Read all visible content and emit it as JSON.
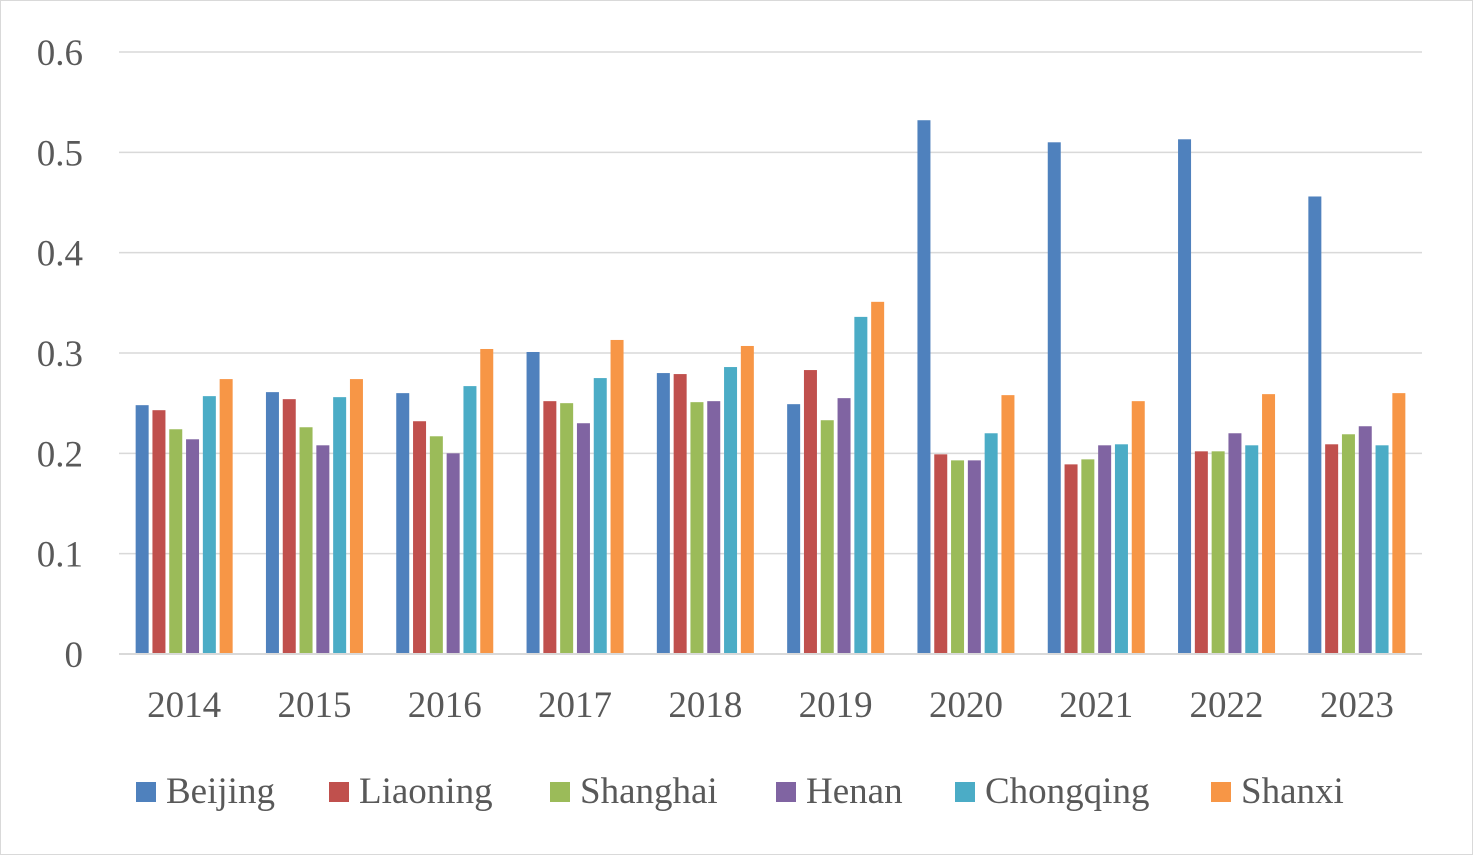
{
  "chart_data": {
    "type": "bar",
    "title": "",
    "xlabel": "",
    "ylabel": "",
    "ylim": [
      0,
      0.6
    ],
    "yticks": [
      "0",
      "0.1",
      "0.2",
      "0.3",
      "0.4",
      "0.5",
      "0.6"
    ],
    "grid": true,
    "legend_position": "bottom",
    "categories": [
      "2014",
      "2015",
      "2016",
      "2017",
      "2018",
      "2019",
      "2020",
      "2021",
      "2022",
      "2023"
    ],
    "series": [
      {
        "name": "Beijing",
        "color": "#4f81bd",
        "values": [
          0.248,
          0.261,
          0.26,
          0.301,
          0.28,
          0.249,
          0.532,
          0.51,
          0.513,
          0.456
        ]
      },
      {
        "name": "Liaoning",
        "color": "#c0504d",
        "values": [
          0.243,
          0.254,
          0.232,
          0.252,
          0.279,
          0.283,
          0.199,
          0.189,
          0.202,
          0.209
        ]
      },
      {
        "name": "Shanghai",
        "color": "#9bbb59",
        "values": [
          0.224,
          0.226,
          0.217,
          0.25,
          0.251,
          0.233,
          0.193,
          0.194,
          0.202,
          0.219
        ]
      },
      {
        "name": "Henan",
        "color": "#8064a2",
        "values": [
          0.214,
          0.208,
          0.2,
          0.23,
          0.252,
          0.255,
          0.193,
          0.208,
          0.22,
          0.227
        ]
      },
      {
        "name": "Chongqing",
        "color": "#4bacc6",
        "values": [
          0.257,
          0.256,
          0.267,
          0.275,
          0.286,
          0.336,
          0.22,
          0.209,
          0.208,
          0.208
        ]
      },
      {
        "name": "Shanxi",
        "color": "#f79646",
        "values": [
          0.274,
          0.274,
          0.304,
          0.313,
          0.307,
          0.351,
          0.258,
          0.252,
          0.259,
          0.26
        ]
      }
    ]
  }
}
